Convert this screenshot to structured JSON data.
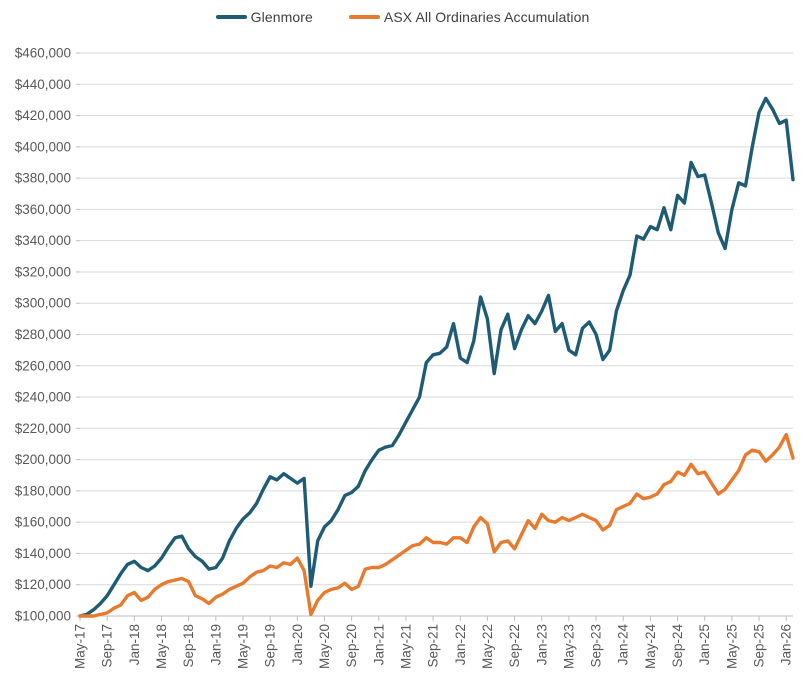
{
  "page": {
    "background": "#ffffff"
  },
  "legend": {
    "items": [
      {
        "label": "Glenmore",
        "color": "#1E5B75"
      },
      {
        "label": "ASX All Ordinaries Accumulation",
        "color": "#E87A2E"
      }
    ]
  },
  "chart_data": {
    "type": "line",
    "title": "",
    "xlabel": "",
    "ylabel": "",
    "y_min": 100000,
    "y_max": 460000,
    "y_tick_step": 20000,
    "y_tick_prefix": "$",
    "x_tick_every": 4,
    "grid": true,
    "grid_color": "#d9d9d9",
    "axis_color": "#bfbfbf",
    "tick_label_color": "#595959",
    "legend_position": "top",
    "x": [
      "May-17",
      "Jun-17",
      "Jul-17",
      "Aug-17",
      "Sep-17",
      "Oct-17",
      "Nov-17",
      "Dec-17",
      "Jan-18",
      "Feb-18",
      "Mar-18",
      "Apr-18",
      "May-18",
      "Jun-18",
      "Jul-18",
      "Aug-18",
      "Sep-18",
      "Oct-18",
      "Nov-18",
      "Dec-18",
      "Jan-19",
      "Feb-19",
      "Mar-19",
      "Apr-19",
      "May-19",
      "Jun-19",
      "Jul-19",
      "Aug-19",
      "Sep-19",
      "Oct-19",
      "Nov-19",
      "Dec-19",
      "Jan-20",
      "Feb-20",
      "Mar-20",
      "Apr-20",
      "May-20",
      "Jun-20",
      "Jul-20",
      "Aug-20",
      "Sep-20",
      "Oct-20",
      "Nov-20",
      "Dec-20",
      "Jan-21",
      "Feb-21",
      "Mar-21",
      "Apr-21",
      "May-21",
      "Jun-21",
      "Jul-21",
      "Aug-21",
      "Sep-21",
      "Oct-21",
      "Nov-21",
      "Dec-21",
      "Jan-22",
      "Feb-22",
      "Mar-22",
      "Apr-22",
      "May-22",
      "Jun-22",
      "Jul-22",
      "Aug-22",
      "Sep-22",
      "Oct-22",
      "Nov-22",
      "Dec-22",
      "Jan-23",
      "Feb-23",
      "Mar-23",
      "Apr-23",
      "May-23",
      "Jun-23",
      "Jul-23",
      "Aug-23",
      "Sep-23",
      "Oct-23",
      "Nov-23",
      "Dec-23",
      "Jan-24",
      "Feb-24",
      "Mar-24",
      "Apr-24",
      "May-24",
      "Jun-24",
      "Jul-24",
      "Aug-24",
      "Sep-24",
      "Oct-24",
      "Nov-24",
      "Dec-24",
      "Jan-25",
      "Feb-25",
      "Mar-25",
      "Apr-25",
      "May-25",
      "Jun-25",
      "Jul-25",
      "Aug-25",
      "Sep-25",
      "Oct-25",
      "Nov-25",
      "Dec-25",
      "Jan-26",
      "Feb-26"
    ],
    "series": [
      {
        "name": "Glenmore",
        "color": "#1E5B75",
        "values": [
          100000,
          101000,
          104000,
          108000,
          113000,
          120000,
          127000,
          133000,
          135000,
          131000,
          129000,
          132000,
          137000,
          144000,
          150000,
          151000,
          143000,
          138000,
          135000,
          130000,
          131000,
          137000,
          148000,
          156000,
          162000,
          166000,
          172000,
          181000,
          189000,
          187000,
          191000,
          188000,
          185000,
          188000,
          119000,
          148000,
          157000,
          161000,
          168000,
          177000,
          179000,
          183000,
          193000,
          200000,
          206000,
          208000,
          209000,
          216000,
          224000,
          232000,
          240000,
          262000,
          267000,
          268000,
          272000,
          287000,
          265000,
          262000,
          276000,
          304000,
          290000,
          255000,
          283000,
          293000,
          271000,
          283000,
          292000,
          287000,
          295000,
          305000,
          282000,
          287000,
          270000,
          267000,
          284000,
          288000,
          280000,
          264000,
          270000,
          295000,
          308000,
          318000,
          343000,
          341000,
          349000,
          347000,
          361000,
          347000,
          369000,
          364000,
          390000,
          381000,
          382000,
          364000,
          345000,
          335000,
          360000,
          377000,
          375000,
          400000,
          422000,
          431000,
          424000,
          415000,
          417000,
          379000
        ]
      },
      {
        "name": "ASX All Ordinaries Accumulation",
        "color": "#E87A2E",
        "values": [
          100000,
          100000,
          100000,
          101000,
          102000,
          105000,
          107000,
          113000,
          115000,
          110000,
          112000,
          117000,
          120000,
          122000,
          123000,
          124000,
          122000,
          113000,
          111000,
          108000,
          112000,
          114000,
          117000,
          119000,
          121000,
          125000,
          128000,
          129000,
          132000,
          131000,
          134000,
          133000,
          137000,
          129000,
          101000,
          110000,
          115000,
          117000,
          118000,
          121000,
          117000,
          119000,
          130000,
          131000,
          131000,
          133000,
          136000,
          139000,
          142000,
          145000,
          146000,
          150000,
          147000,
          147000,
          146000,
          150000,
          150000,
          147000,
          157000,
          163000,
          159000,
          141000,
          147000,
          148000,
          143000,
          152000,
          161000,
          156000,
          165000,
          161000,
          160000,
          163000,
          161000,
          163000,
          165000,
          163000,
          161000,
          155000,
          158000,
          168000,
          170000,
          172000,
          178000,
          175000,
          176000,
          178000,
          184000,
          186000,
          192000,
          190000,
          197000,
          191000,
          192000,
          185000,
          178000,
          181000,
          187000,
          193000,
          203000,
          206000,
          205000,
          199000,
          203000,
          208000,
          216000,
          201000
        ]
      }
    ]
  }
}
